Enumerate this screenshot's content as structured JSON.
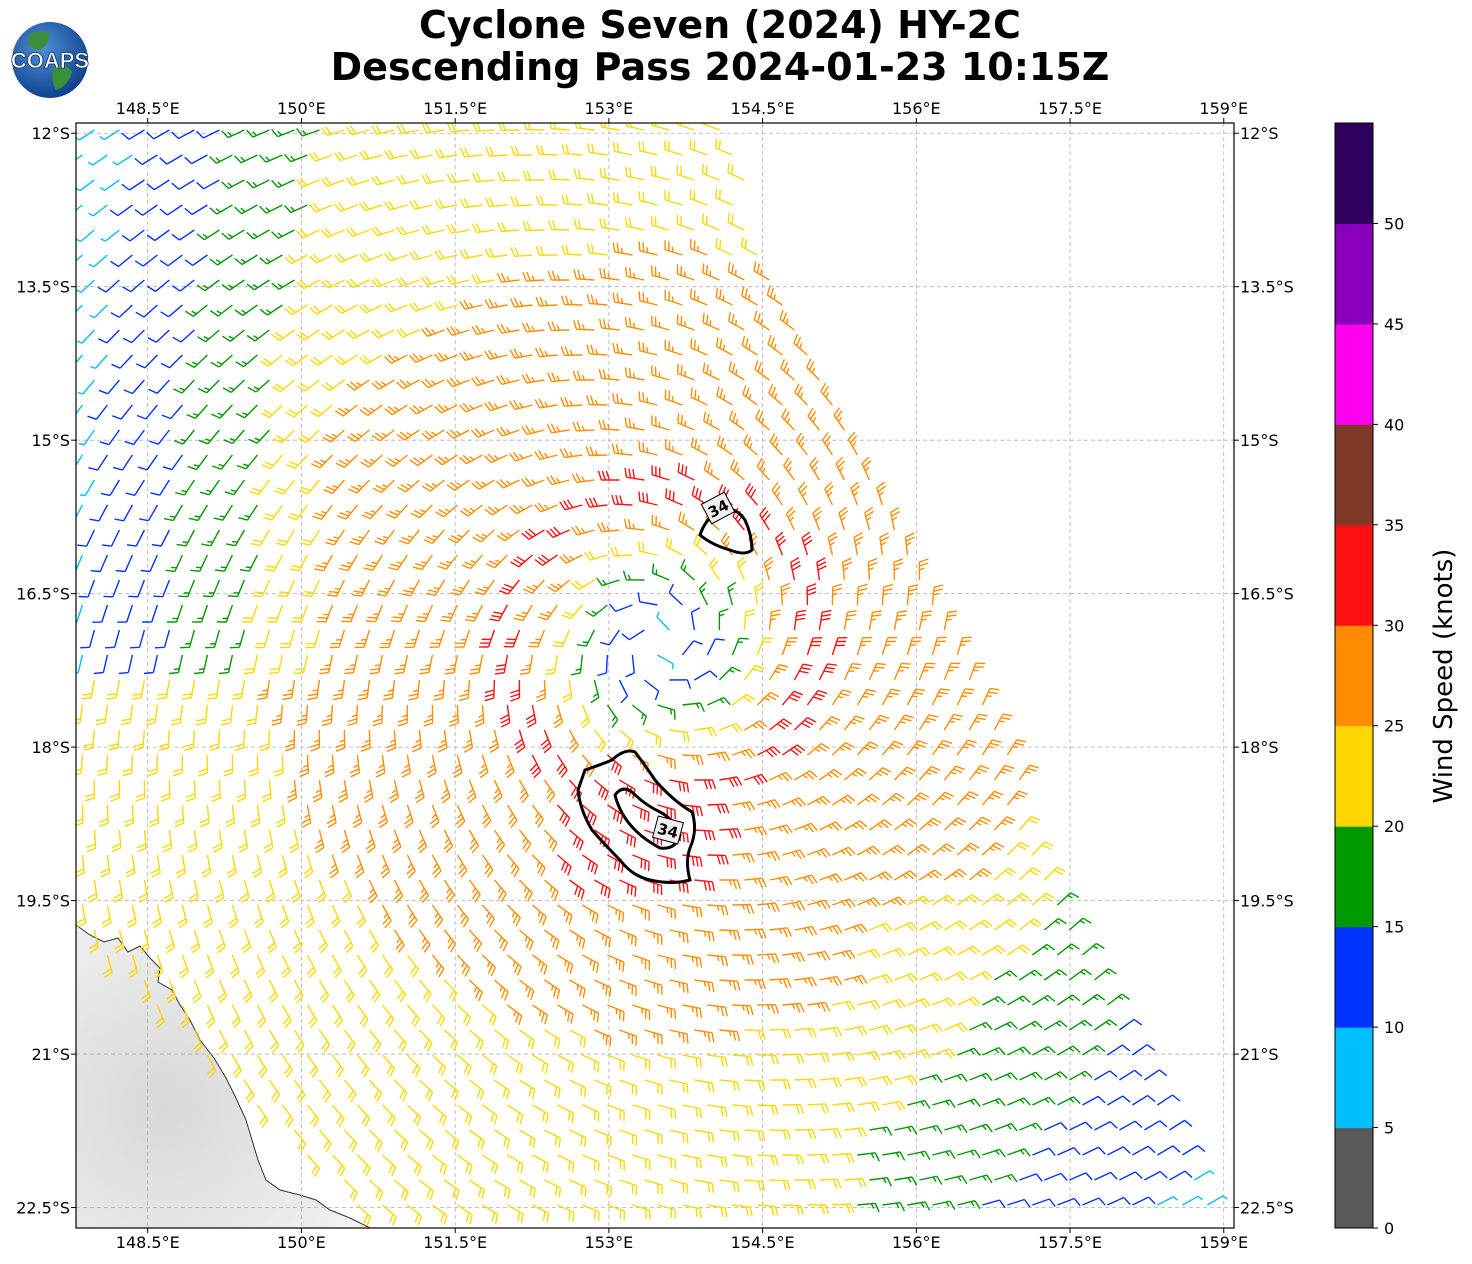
{
  "title": {
    "line1": "Cyclone Seven (2024) HY-2C",
    "line2": "Descending Pass 2024-01-23 10:15Z"
  },
  "logo": {
    "text": "COAPS"
  },
  "map": {
    "lon_range": [
      147.8,
      159.1
    ],
    "lat_range": [
      -22.7,
      -11.9
    ],
    "lon_ticks": [
      "148.5°E",
      "150°E",
      "151.5°E",
      "153°E",
      "154.5°E",
      "156°E",
      "157.5°E",
      "159°E"
    ],
    "lat_ticks": [
      "12°S",
      "13.5°S",
      "15°S",
      "16.5°S",
      "18°S",
      "19.5°S",
      "21°S",
      "22.5°S"
    ],
    "grid": true,
    "storm_center": {
      "lon": 153.5,
      "lat": -17.0
    },
    "contour_label_34kt": "34",
    "land": "Queensland coast (lower-left)",
    "ocean_color": "#ffffff",
    "land_color": "#e6e6e6"
  },
  "colorbar": {
    "label": "Wind Speed (knots)",
    "ticks": [
      "0",
      "5",
      "10",
      "15",
      "20",
      "25",
      "30",
      "35",
      "40",
      "45",
      "50"
    ],
    "colors": [
      "#595959",
      "#00bfff",
      "#0033ff",
      "#009900",
      "#ffd700",
      "#ff8c00",
      "#ff1010",
      "#7f3b28",
      "#ff00ee",
      "#8800bb",
      "#2e0060"
    ]
  }
}
